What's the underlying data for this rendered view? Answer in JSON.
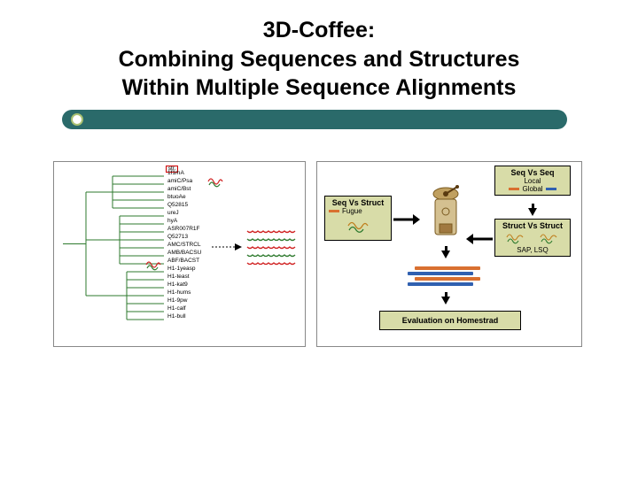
{
  "title": {
    "line1": "3D-Coffee:",
    "line2": "Combining Sequences and Structures",
    "line3": "Within Multiple Sequence Alignments"
  },
  "underline": {
    "bar_color": "#2a6a6a",
    "bullet_border": "#a8c070"
  },
  "left_panel": {
    "type": "tree",
    "highlight_label": "str.",
    "leaves": [
      "1f1mA",
      "amiC/Psa",
      "amiC/Bst",
      "btuoAe",
      "Q52815",
      "ureJ",
      "hyA",
      "ASR007R1F",
      "Q52713",
      "AMC/STRCL",
      "AMB/BACSU",
      "ABF/BACST",
      "H1-1yeasp",
      "H1-teast",
      "H1-kat9",
      "H1-hums",
      "H1-9pw",
      "H1-calf",
      "H1-bull"
    ],
    "scribble_positions": [
      1,
      11
    ],
    "edge_color": "#2e7a2e",
    "wavy_colors": [
      "#d02020",
      "#2e7a2e"
    ],
    "wavy_rows": 5
  },
  "right_panel": {
    "type": "flowchart",
    "seq_vs_seq": {
      "title": "Seq Vs Seq",
      "sub1": "Local",
      "sub2": "Global"
    },
    "seq_vs_struct": {
      "title": "Seq Vs Struct",
      "sub": "Fugue"
    },
    "struct_vs_struct": {
      "title": "Struct Vs Struct",
      "sub": "SAP, LSQ"
    },
    "evaluation": "Evaluation on Homestrad",
    "bar_colors": [
      "#d97030",
      "#3060b0",
      "#d97030",
      "#3060b0"
    ],
    "grinder_body_color": "#d4c090",
    "grinder_top_color": "#c0a060"
  },
  "colors": {
    "panel_border": "#888888",
    "box_bg": "#d8dca8",
    "box_border": "#000000",
    "red": "#d02020",
    "green": "#2e7a2e"
  }
}
